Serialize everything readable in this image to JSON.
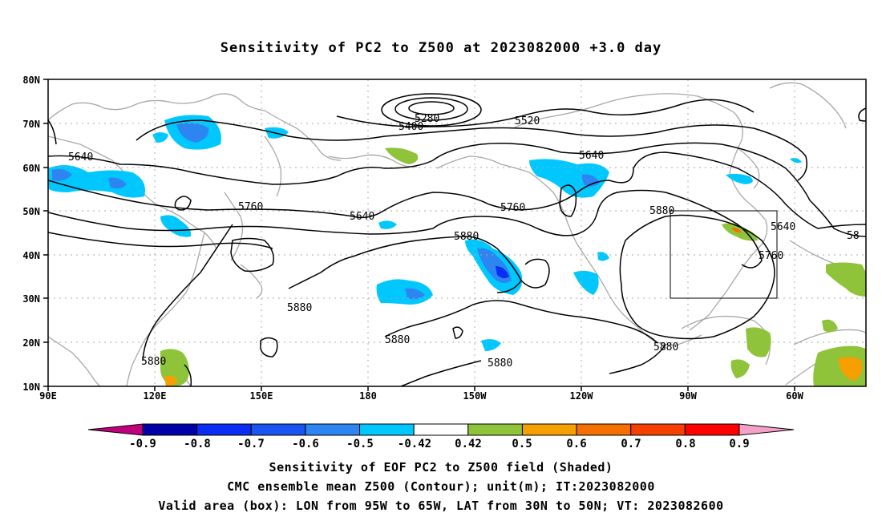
{
  "title": "Sensitivity of PC2 to Z500 at 2023082000 +3.0 day",
  "map": {
    "lat_labels": [
      "80N",
      "70N",
      "60N",
      "50N",
      "40N",
      "30N",
      "20N",
      "10N"
    ],
    "lon_labels": [
      "90E",
      "120E",
      "150E",
      "180",
      "150W",
      "120W",
      "90W",
      "60W"
    ],
    "contour_labels": [
      {
        "text": "5280"
      },
      {
        "text": "5400"
      },
      {
        "text": "5520"
      },
      {
        "text": "5640"
      },
      {
        "text": "5640"
      },
      {
        "text": "5640"
      },
      {
        "text": "5640"
      },
      {
        "text": "5760"
      },
      {
        "text": "5760"
      },
      {
        "text": "5760"
      },
      {
        "text": "5880"
      },
      {
        "text": "5880"
      },
      {
        "text": "5880"
      },
      {
        "text": "5880"
      },
      {
        "text": "5880"
      },
      {
        "text": "5880"
      },
      {
        "text": "5880"
      },
      {
        "text": "58"
      }
    ],
    "valid_box": {
      "lon_from": "95W",
      "lon_to": "65W",
      "lat_from": "30N",
      "lat_to": "50N"
    }
  },
  "colorbar": {
    "labels": [
      "-0.9",
      "-0.8",
      "-0.7",
      "-0.6",
      "-0.5",
      "-0.42",
      "0.42",
      "0.5",
      "0.6",
      "0.7",
      "0.8",
      "0.9"
    ],
    "colors": [
      "#0000a8",
      "#0a2ef5",
      "#1a55f2",
      "#2c85f0",
      "#00c8ff",
      "#ffffff",
      "#8fc43a",
      "#f5a000",
      "#f57000",
      "#f54000",
      "#ff0000"
    ],
    "low_arrow_color": "#c0007a",
    "high_arrow_color": "#f5a0c8"
  },
  "captions": [
    "Sensitivity of EOF PC2 to Z500 field (Shaded)",
    "CMC ensemble mean Z500 (Contour); unit(m); IT:2023082000",
    "Valid area (box): LON from 95W to 65W, LAT from 30N to 50N; VT: 2023082600"
  ]
}
